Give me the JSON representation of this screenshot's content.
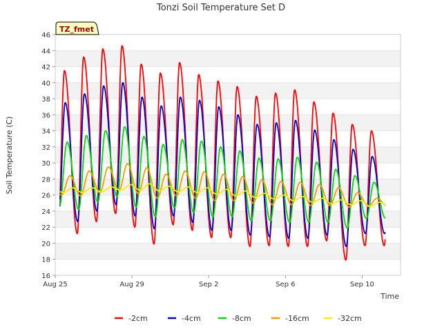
{
  "chart_data": {
    "type": "line",
    "title": "Tonzi Soil Temperature Set D",
    "xlabel": "Time",
    "ylabel": "Soil Temperature (C)",
    "ylim": [
      16,
      46
    ],
    "y_ticks": [
      16,
      18,
      20,
      22,
      24,
      26,
      28,
      30,
      32,
      34,
      36,
      38,
      40,
      42,
      44,
      46
    ],
    "x_range_days": [
      0,
      18
    ],
    "x_ticks": [
      {
        "day": 0,
        "label": "Aug 25"
      },
      {
        "day": 4,
        "label": "Aug 29"
      },
      {
        "day": 8,
        "label": "Sep 2"
      },
      {
        "day": 12,
        "label": "Sep 6"
      },
      {
        "day": 16,
        "label": "Sep 10"
      }
    ],
    "grid": "horizontal alternating bands",
    "legend_position": "bottom",
    "annotation": "TZ_fmet",
    "series": [
      {
        "name": "-2cm",
        "color": "#ff0000",
        "max": [
          41.5,
          43.2,
          44.2,
          44.6,
          42.3,
          41.2,
          42.5,
          41.0,
          40.2,
          39.5,
          38.3,
          38.7,
          39.1,
          37.6,
          36.2,
          34.8,
          34.0
        ],
        "min": [
          21.2,
          21.2,
          22.7,
          23.7,
          22.0,
          19.9,
          22.3,
          21.6,
          20.7,
          20.7,
          19.6,
          19.7,
          19.6,
          19.6,
          20.3,
          17.9,
          19.7
        ]
      },
      {
        "name": "-4cm",
        "color": "#0000cc",
        "max": [
          37.5,
          38.6,
          39.6,
          40.0,
          38.2,
          37.1,
          38.2,
          37.8,
          37.0,
          36.0,
          34.8,
          35.0,
          35.3,
          34.1,
          32.9,
          31.7,
          30.8
        ],
        "min": [
          22.8,
          22.7,
          24.0,
          24.8,
          23.4,
          21.8,
          23.4,
          22.6,
          21.6,
          21.6,
          21.0,
          20.8,
          20.6,
          20.6,
          21.0,
          19.6,
          21.2
        ]
      },
      {
        "name": "-8cm",
        "color": "#00dd00",
        "max": [
          32.6,
          33.4,
          34.0,
          34.5,
          33.3,
          32.3,
          32.9,
          32.7,
          32.0,
          31.5,
          30.6,
          30.5,
          30.7,
          30.1,
          29.2,
          28.4,
          27.6
        ],
        "min": [
          24.6,
          24.2,
          25.1,
          25.8,
          24.5,
          23.3,
          24.4,
          23.8,
          23.3,
          23.3,
          22.8,
          22.8,
          22.6,
          22.6,
          22.6,
          21.9,
          23.1
        ]
      },
      {
        "name": "-16cm",
        "color": "#ff9900",
        "max": [
          28.4,
          29.0,
          29.5,
          29.9,
          29.4,
          28.6,
          29.0,
          28.9,
          28.6,
          28.3,
          27.9,
          27.7,
          27.6,
          27.3,
          26.9,
          26.3,
          25.6
        ],
        "min": [
          26.0,
          25.9,
          26.3,
          26.6,
          26.2,
          25.6,
          25.9,
          25.6,
          25.3,
          25.3,
          25.0,
          24.8,
          24.8,
          24.7,
          24.7,
          24.5,
          24.6
        ]
      },
      {
        "name": "-32cm",
        "color": "#ffee00",
        "max": [
          26.9,
          26.9,
          27.0,
          27.3,
          27.4,
          27.1,
          27.0,
          26.9,
          26.7,
          26.5,
          26.2,
          26.0,
          25.8,
          25.6,
          25.4,
          25.3,
          25.1
        ],
        "min": [
          26.3,
          26.3,
          26.4,
          26.6,
          26.6,
          26.5,
          26.4,
          26.3,
          26.1,
          25.9,
          25.7,
          25.5,
          25.3,
          25.1,
          24.9,
          24.8,
          24.6
        ]
      }
    ]
  }
}
